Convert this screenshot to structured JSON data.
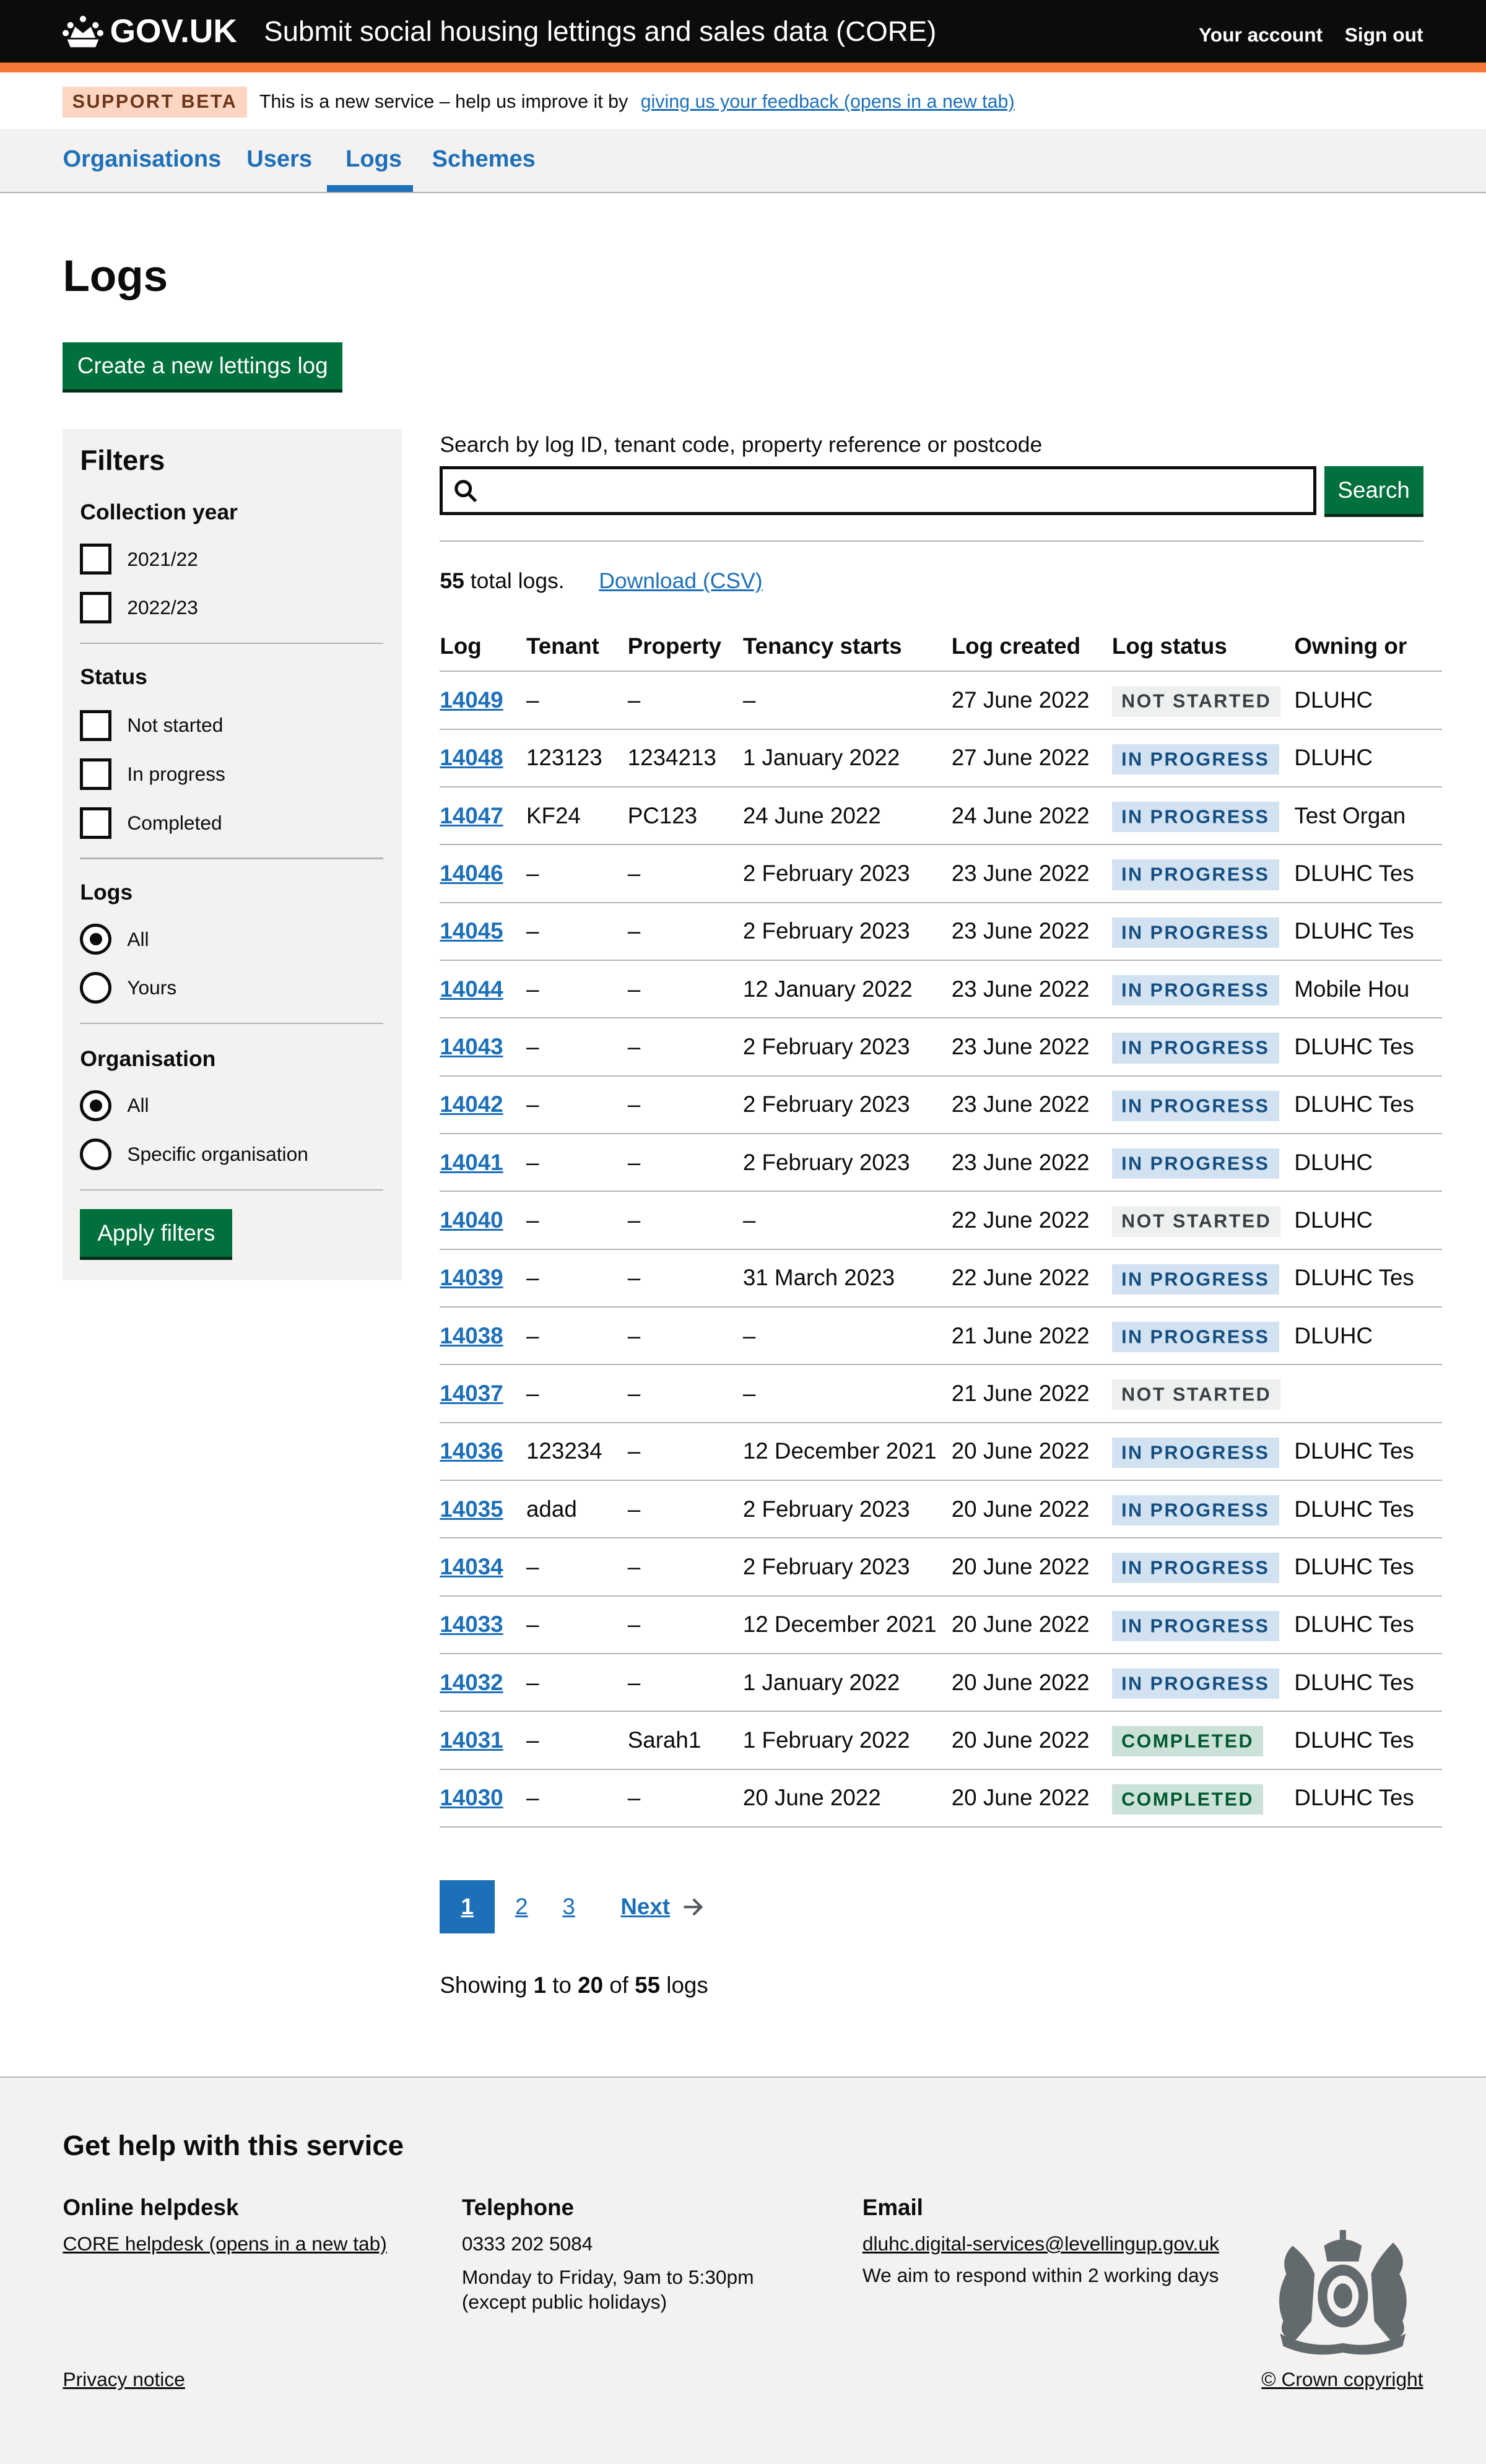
{
  "header": {
    "logo": "GOV.UK",
    "service_name": "Submit social housing lettings and sales data (CORE)",
    "your_account": "Your account",
    "sign_out": "Sign out"
  },
  "banner": {
    "tag": "SUPPORT BETA",
    "text": "This is a new service – help us improve it by",
    "link": "giving us your feedback (opens in a new tab)"
  },
  "nav": {
    "items": [
      {
        "label": "Organisations"
      },
      {
        "label": "Users"
      },
      {
        "label": "Logs",
        "active": true
      },
      {
        "label": "Schemes"
      }
    ]
  },
  "page": {
    "title": "Logs",
    "create_button": "Create a new lettings log"
  },
  "filters": {
    "title": "Filters",
    "collection_year": {
      "label": "Collection year",
      "options": [
        {
          "label": "2021/22",
          "checked": false
        },
        {
          "label": "2022/23",
          "checked": false
        }
      ]
    },
    "status": {
      "label": "Status",
      "options": [
        {
          "label": "Not started",
          "checked": false
        },
        {
          "label": "In progress",
          "checked": false
        },
        {
          "label": "Completed",
          "checked": false
        }
      ]
    },
    "logs": {
      "label": "Logs",
      "options": [
        {
          "label": "All",
          "selected": true
        },
        {
          "label": "Yours",
          "selected": false
        }
      ]
    },
    "organisation": {
      "label": "Organisation",
      "options": [
        {
          "label": "All",
          "selected": true
        },
        {
          "label": "Specific organisation",
          "selected": false
        }
      ]
    },
    "apply_button": "Apply filters"
  },
  "search": {
    "label": "Search by log ID, tenant code, property reference or postcode",
    "value": "",
    "button": "Search",
    "icon": "search-icon"
  },
  "summary": {
    "count": "55",
    "count_suffix": " total logs.",
    "download": "Download (CSV)"
  },
  "table": {
    "headers": [
      "Log",
      "Tenant",
      "Property",
      "Tenancy starts",
      "Log created",
      "Log status",
      "Owning or"
    ],
    "rows": [
      [
        "14049",
        "–",
        "–",
        "–",
        "27 June 2022",
        "NOT STARTED",
        "DLUHC"
      ],
      [
        "14048",
        "123123",
        "1234213",
        "1 January 2022",
        "27 June 2022",
        "IN PROGRESS",
        "DLUHC"
      ],
      [
        "14047",
        "KF24",
        "PC123",
        "24 June 2022",
        "24 June 2022",
        "IN PROGRESS",
        "Test Organ"
      ],
      [
        "14046",
        "–",
        "–",
        "2 February 2023",
        "23 June 2022",
        "IN PROGRESS",
        "DLUHC Tes"
      ],
      [
        "14045",
        "–",
        "–",
        "2 February 2023",
        "23 June 2022",
        "IN PROGRESS",
        "DLUHC Tes"
      ],
      [
        "14044",
        "–",
        "–",
        "12 January 2022",
        "23 June 2022",
        "IN PROGRESS",
        "Mobile Hou"
      ],
      [
        "14043",
        "–",
        "–",
        "2 February 2023",
        "23 June 2022",
        "IN PROGRESS",
        "DLUHC Tes"
      ],
      [
        "14042",
        "–",
        "–",
        "2 February 2023",
        "23 June 2022",
        "IN PROGRESS",
        "DLUHC Tes"
      ],
      [
        "14041",
        "–",
        "–",
        "2 February 2023",
        "23 June 2022",
        "IN PROGRESS",
        "DLUHC"
      ],
      [
        "14040",
        "–",
        "–",
        "–",
        "22 June 2022",
        "NOT STARTED",
        "DLUHC"
      ],
      [
        "14039",
        "–",
        "–",
        "31 March 2023",
        "22 June 2022",
        "IN PROGRESS",
        "DLUHC Tes"
      ],
      [
        "14038",
        "–",
        "–",
        "–",
        "21 June 2022",
        "IN PROGRESS",
        "DLUHC"
      ],
      [
        "14037",
        "–",
        "–",
        "–",
        "21 June 2022",
        "NOT STARTED",
        ""
      ],
      [
        "14036",
        "123234",
        "–",
        "12 December 2021",
        "20 June 2022",
        "IN PROGRESS",
        "DLUHC Tes"
      ],
      [
        "14035",
        "adad",
        "–",
        "2 February 2023",
        "20 June 2022",
        "IN PROGRESS",
        "DLUHC Tes"
      ],
      [
        "14034",
        "–",
        "–",
        "2 February 2023",
        "20 June 2022",
        "IN PROGRESS",
        "DLUHC Tes"
      ],
      [
        "14033",
        "–",
        "–",
        "12 December 2021",
        "20 June 2022",
        "IN PROGRESS",
        "DLUHC Tes"
      ],
      [
        "14032",
        "–",
        "–",
        "1 January 2022",
        "20 June 2022",
        "IN PROGRESS",
        "DLUHC Tes"
      ],
      [
        "14031",
        "–",
        "Sarah1",
        "1 February 2022",
        "20 June 2022",
        "COMPLETED",
        "DLUHC Tes"
      ],
      [
        "14030",
        "–",
        "–",
        "20 June 2022",
        "20 June 2022",
        "COMPLETED",
        "DLUHC Tes"
      ]
    ]
  },
  "pagination": {
    "current": "1",
    "pages": [
      "2",
      "3"
    ],
    "next": "Next"
  },
  "showing": {
    "prefix": "Showing ",
    "from": "1",
    "to_word": " to ",
    "to": "20",
    "of_word": " of ",
    "total": "55",
    "suffix": " logs"
  },
  "footer": {
    "title": "Get help with this service",
    "helpdesk": {
      "heading": "Online helpdesk",
      "link": "CORE helpdesk (opens in a new tab)"
    },
    "telephone": {
      "heading": "Telephone",
      "number": "0333 202 5084",
      "hours": "Monday to Friday, 9am to 5:30pm",
      "note": "(except public holidays)"
    },
    "email": {
      "heading": "Email",
      "address": "dluhc.digital-services@levellingup.gov.uk",
      "note": "We aim to respond within 2 working days"
    },
    "privacy": "Privacy notice",
    "copyright": "© Crown copyright"
  },
  "colors": {
    "header": "#0b0c0c",
    "accent": "#f47738",
    "link": "#1d70b8",
    "button": "#00703c",
    "panel": "#f3f2f1"
  }
}
